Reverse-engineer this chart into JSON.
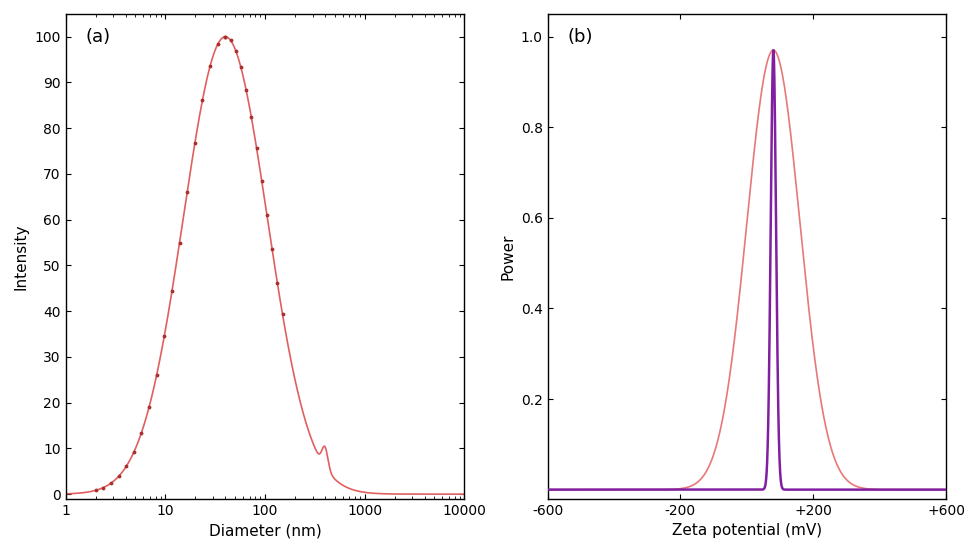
{
  "panel_a": {
    "label": "(a)",
    "xlabel": "Diameter (nm)",
    "ylabel": "Intensity",
    "ylim": [
      -1,
      105
    ],
    "yticks": [
      0,
      10,
      20,
      30,
      40,
      50,
      60,
      70,
      80,
      90,
      100
    ],
    "peak_nm": 40,
    "peak_intensity": 100,
    "sigma_log": 0.42,
    "curve_color": "#E06060",
    "marker_color": "#AA3030",
    "artifact_x_nm": 400,
    "artifact_height": 4.5,
    "artifact_sigma_log": 0.03
  },
  "panel_b": {
    "label": "(b)",
    "xlabel": "Zeta potential (mV)",
    "ylabel": "Power",
    "xlim": [
      -600,
      600
    ],
    "ylim": [
      -0.02,
      1.05
    ],
    "yticks": [
      0.2,
      0.4,
      0.6,
      0.8,
      1.0
    ],
    "xticks": [
      -600,
      -200,
      200,
      600
    ],
    "xtick_labels": [
      "-600",
      "-200",
      "+200",
      "+600"
    ],
    "peak_mv": 80,
    "peak_power": 0.97,
    "sigma_outer": 80,
    "sigma_inner": 8,
    "curve_color_outer": "#E87878",
    "curve_color_inner": "#8020A0",
    "linewidth_outer": 1.2,
    "linewidth_inner": 1.8
  },
  "background_color": "#ffffff",
  "fig_width": 9.79,
  "fig_height": 5.52,
  "dpi": 100
}
